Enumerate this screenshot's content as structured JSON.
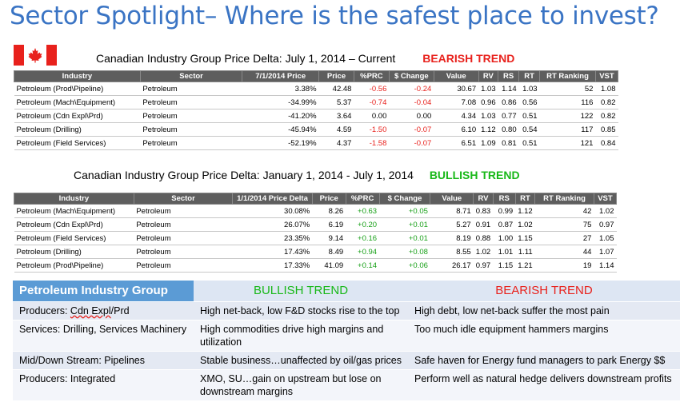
{
  "title": "Sector Spotlight– Where is the safest place to invest?",
  "section1": {
    "caption": "Canadian Industry Group Price Delta:  July 1, 2014 – Current",
    "trend": "BEARISH TREND",
    "headers": [
      "Industry",
      "Sector",
      "7/1/2014 Price",
      "Price",
      "%PRC",
      "$ Change",
      "Value",
      "RV",
      "RS",
      "RT",
      "RT Ranking",
      "VST"
    ],
    "rows": [
      [
        "Petroleum (Prod\\Pipeline)",
        "Petroleum",
        "3.38%",
        "42.48",
        "-0.56",
        "-0.24",
        "30.67",
        "1.03",
        "1.14",
        "1.03",
        "52",
        "1.08"
      ],
      [
        "Petroleum (Mach\\Equipment)",
        "Petroleum",
        "-34.99%",
        "5.37",
        "-0.74",
        "-0.04",
        "7.08",
        "0.96",
        "0.86",
        "0.56",
        "116",
        "0.82"
      ],
      [
        "Petroleum (Cdn Expl\\Prd)",
        "Petroleum",
        "-41.20%",
        "3.64",
        "0.00",
        "0.00",
        "4.34",
        "1.03",
        "0.77",
        "0.51",
        "122",
        "0.82"
      ],
      [
        "Petroleum (Drilling)",
        "Petroleum",
        "-45.94%",
        "4.59",
        "-1.50",
        "-0.07",
        "6.10",
        "1.12",
        "0.80",
        "0.54",
        "117",
        "0.85"
      ],
      [
        "Petroleum (Field Services)",
        "Petroleum",
        "-52.19%",
        "4.37",
        "-1.58",
        "-0.07",
        "6.51",
        "1.09",
        "0.81",
        "0.51",
        "121",
        "0.84"
      ]
    ]
  },
  "section2": {
    "caption": "Canadian Industry Group Price Delta:  January 1, 2014 - July 1, 2014",
    "trend": "BULLISH TREND",
    "headers": [
      "Industry",
      "Sector",
      "1/1/2014 Price Delta",
      "Price",
      "%PRC",
      "$ Change",
      "Value",
      "RV",
      "RS",
      "RT",
      "RT Ranking",
      "VST"
    ],
    "rows": [
      [
        "Petroleum (Mach\\Equipment)",
        "Petroleum",
        "30.08%",
        "8.26",
        "+0.63",
        "+0.05",
        "8.71",
        "0.83",
        "0.99",
        "1.12",
        "42",
        "1.02"
      ],
      [
        "Petroleum (Cdn Expl\\Prd)",
        "Petroleum",
        "26.07%",
        "6.19",
        "+0.20",
        "+0.01",
        "5.27",
        "0.91",
        "0.87",
        "1.02",
        "75",
        "0.97"
      ],
      [
        "Petroleum (Field Services)",
        "Petroleum",
        "23.35%",
        "9.14",
        "+0.16",
        "+0.01",
        "8.19",
        "0.88",
        "1.00",
        "1.15",
        "27",
        "1.05"
      ],
      [
        "Petroleum (Drilling)",
        "Petroleum",
        "17.43%",
        "8.49",
        "+0.94",
        "+0.08",
        "8.55",
        "1.02",
        "1.01",
        "1.11",
        "44",
        "1.07"
      ],
      [
        "Petroleum (Prod\\Pipeline)",
        "Petroleum",
        "17.33%",
        "41.09",
        "+0.14",
        "+0.06",
        "26.17",
        "0.97",
        "1.15",
        "1.21",
        "19",
        "1.14"
      ]
    ]
  },
  "summary": {
    "headers": [
      "Petroleum Industry Group",
      "BULLISH TREND",
      "BEARISH TREND"
    ],
    "rows": [
      {
        "group_prefix": "Producers:  ",
        "group_wavy": "Cdn Expl",
        "group_suffix": "/Prd",
        "bullish": "High net-back, low F&D stocks rise to the top",
        "bearish": "High debt, low net-back suffer the most pain"
      },
      {
        "group_prefix": "Services:  Drilling, Services Machinery",
        "group_wavy": "",
        "group_suffix": "",
        "bullish": "High commodities drive high margins and utilization",
        "bearish": "Too much idle equipment hammers margins"
      },
      {
        "group_prefix": "Mid/Down Stream:  Pipelines",
        "group_wavy": "",
        "group_suffix": "",
        "bullish": "Stable business…unaffected by oil/gas prices",
        "bearish": "Safe haven for Energy fund managers to park Energy $$"
      },
      {
        "group_prefix": "Producers:  Integrated",
        "group_wavy": "",
        "group_suffix": "",
        "bullish": "XMO, SU…gain on upstream but lose on downstream margins",
        "bearish": "Perform well as natural hedge delivers downstream profits"
      }
    ]
  },
  "colors": {
    "title": "#3a74c4",
    "bearish": "#e8211c",
    "bullish": "#18b818",
    "header_bg": "#5e5e5e",
    "summary_head": "#5b9bd5"
  },
  "icons": {
    "flag": "canada-flag-icon"
  }
}
